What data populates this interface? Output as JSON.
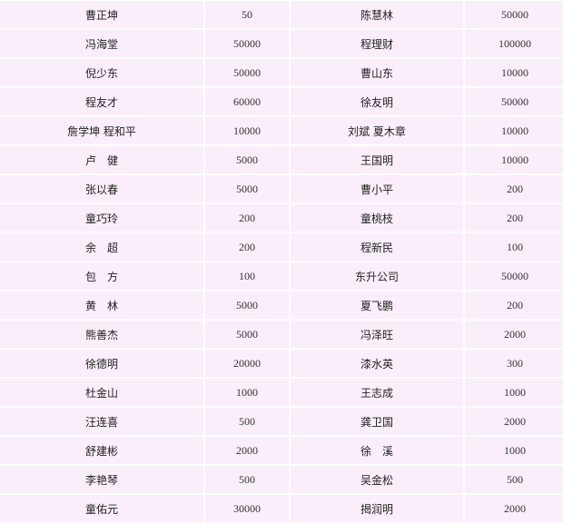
{
  "rows": [
    {
      "name1": "曹正坤",
      "amount1": "50",
      "name2": "陈慧林",
      "amount2": "50000"
    },
    {
      "name1": "冯海堂",
      "amount1": "50000",
      "name2": "程理财",
      "amount2": "100000"
    },
    {
      "name1": "倪少东",
      "amount1": "50000",
      "name2": "曹山东",
      "amount2": "10000"
    },
    {
      "name1": "程友才",
      "amount1": "60000",
      "name2": "徐友明",
      "amount2": "50000"
    },
    {
      "name1": "詹学坤 程和平",
      "amount1": "10000",
      "name2": "刘斌 夏木章",
      "amount2": "10000"
    },
    {
      "name1": "卢　健",
      "amount1": "5000",
      "name2": "王国明",
      "amount2": "10000"
    },
    {
      "name1": "张以春",
      "amount1": "5000",
      "name2": "曹小平",
      "amount2": "200"
    },
    {
      "name1": "童巧玲",
      "amount1": "200",
      "name2": "童桃枝",
      "amount2": "200"
    },
    {
      "name1": "余　超",
      "amount1": "200",
      "name2": "程新民",
      "amount2": "100"
    },
    {
      "name1": "包　方",
      "amount1": "100",
      "name2": "东升公司",
      "amount2": "50000"
    },
    {
      "name1": "黄　林",
      "amount1": "5000",
      "name2": "夏飞鹏",
      "amount2": "200"
    },
    {
      "name1": "熊善杰",
      "amount1": "5000",
      "name2": "冯泽旺",
      "amount2": "2000"
    },
    {
      "name1": "徐德明",
      "amount1": "20000",
      "name2": "漆水英",
      "amount2": "300"
    },
    {
      "name1": "杜金山",
      "amount1": "1000",
      "name2": "王志成",
      "amount2": "1000"
    },
    {
      "name1": "汪连喜",
      "amount1": "500",
      "name2": "龚卫国",
      "amount2": "2000"
    },
    {
      "name1": "舒建彬",
      "amount1": "2000",
      "name2": "徐　溪",
      "amount2": "1000"
    },
    {
      "name1": "李艳琴",
      "amount1": "500",
      "name2": "吴金松",
      "amount2": "500"
    },
    {
      "name1": "童佑元",
      "amount1": "30000",
      "name2": "揭润明",
      "amount2": "2000"
    }
  ]
}
